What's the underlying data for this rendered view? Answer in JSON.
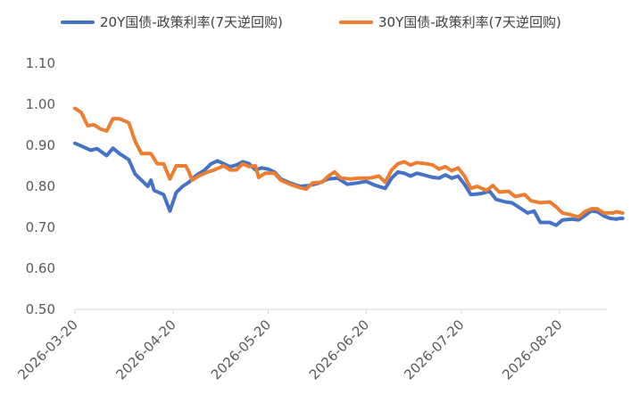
{
  "chart_data": {
    "type": "line",
    "title": "",
    "xlabel": "",
    "ylabel": "",
    "ylim": [
      0.5,
      1.1
    ],
    "y_ticks": [
      "0.50",
      "0.60",
      "0.70",
      "0.80",
      "0.90",
      "1.00",
      "1.10"
    ],
    "x_range": [
      "2026-03-20",
      "2026-08-35"
    ],
    "x_ticks": [
      "2026-03-20",
      "2026-04-20",
      "2026-05-20",
      "2026-06-20",
      "2026-07-20",
      "2026-08-20"
    ],
    "grid": false,
    "legend_position": "top",
    "series": [
      {
        "name": "20Y国债-政策利率(7天逆回购)",
        "color": "#4472C4",
        "points": [
          [
            "2026-03-20",
            0.905
          ],
          [
            "2026-03-23",
            0.895
          ],
          [
            "2026-03-25",
            0.888
          ],
          [
            "2026-03-27",
            0.892
          ],
          [
            "2026-03-30",
            0.875
          ],
          [
            "2026-04-01",
            0.893
          ],
          [
            "2026-04-03",
            0.88
          ],
          [
            "2026-04-06",
            0.865
          ],
          [
            "2026-04-08",
            0.83
          ],
          [
            "2026-04-10",
            0.815
          ],
          [
            "2026-04-12",
            0.8
          ],
          [
            "2026-04-13",
            0.815
          ],
          [
            "2026-04-14",
            0.79
          ],
          [
            "2026-04-17",
            0.78
          ],
          [
            "2026-04-19",
            0.74
          ],
          [
            "2026-04-21",
            0.785
          ],
          [
            "2026-04-23",
            0.8
          ],
          [
            "2026-04-25",
            0.81
          ],
          [
            "2026-04-27",
            0.825
          ],
          [
            "2026-04-30",
            0.84
          ],
          [
            "2026-05-02",
            0.855
          ],
          [
            "2026-05-04",
            0.862
          ],
          [
            "2026-05-06",
            0.855
          ],
          [
            "2026-05-08",
            0.848
          ],
          [
            "2026-05-10",
            0.852
          ],
          [
            "2026-05-12",
            0.86
          ],
          [
            "2026-05-14",
            0.855
          ],
          [
            "2026-05-16",
            0.84
          ],
          [
            "2026-05-18",
            0.845
          ],
          [
            "2026-05-20",
            0.842
          ],
          [
            "2026-05-22",
            0.835
          ],
          [
            "2026-05-24",
            0.818
          ],
          [
            "2026-05-27",
            0.808
          ],
          [
            "2026-05-30",
            0.8
          ],
          [
            "2026-06-02",
            0.802
          ],
          [
            "2026-06-05",
            0.808
          ],
          [
            "2026-06-08",
            0.818
          ],
          [
            "2026-06-11",
            0.82
          ],
          [
            "2026-06-14",
            0.805
          ],
          [
            "2026-06-17",
            0.808
          ],
          [
            "2026-06-20",
            0.812
          ],
          [
            "2026-06-23",
            0.802
          ],
          [
            "2026-06-26",
            0.795
          ],
          [
            "2026-06-28",
            0.82
          ],
          [
            "2026-06-30",
            0.835
          ],
          [
            "2026-07-02",
            0.832
          ],
          [
            "2026-07-04",
            0.825
          ],
          [
            "2026-07-06",
            0.832
          ],
          [
            "2026-07-08",
            0.828
          ],
          [
            "2026-07-11",
            0.822
          ],
          [
            "2026-07-13",
            0.82
          ],
          [
            "2026-07-15",
            0.828
          ],
          [
            "2026-07-17",
            0.82
          ],
          [
            "2026-07-19",
            0.825
          ],
          [
            "2026-07-21",
            0.805
          ],
          [
            "2026-07-23",
            0.78
          ],
          [
            "2026-07-26",
            0.782
          ],
          [
            "2026-07-29",
            0.788
          ],
          [
            "2026-07-31",
            0.768
          ],
          [
            "2026-08-03",
            0.762
          ],
          [
            "2026-08-05",
            0.76
          ],
          [
            "2026-08-07",
            0.75
          ],
          [
            "2026-08-10",
            0.735
          ],
          [
            "2026-08-12",
            0.74
          ],
          [
            "2026-08-14",
            0.712
          ],
          [
            "2026-08-17",
            0.712
          ],
          [
            "2026-08-19",
            0.705
          ],
          [
            "2026-08-21",
            0.718
          ],
          [
            "2026-08-24",
            0.72
          ],
          [
            "2026-08-26",
            0.718
          ],
          [
            "2026-08-28",
            0.728
          ],
          [
            "2026-08-30",
            0.74
          ],
          [
            "2026-09-01",
            0.738
          ],
          [
            "2026-09-03",
            0.728
          ],
          [
            "2026-09-05",
            0.722
          ],
          [
            "2026-09-07",
            0.72
          ],
          [
            "2026-09-08",
            0.722
          ],
          [
            "2026-09-09",
            0.722
          ]
        ]
      },
      {
        "name": "30Y国债-政策利率(7天逆回购)",
        "color": "#ED7D31",
        "points": [
          [
            "2026-03-20",
            0.99
          ],
          [
            "2026-03-22",
            0.98
          ],
          [
            "2026-03-24",
            0.948
          ],
          [
            "2026-03-26",
            0.95
          ],
          [
            "2026-03-28",
            0.94
          ],
          [
            "2026-03-30",
            0.935
          ],
          [
            "2026-04-01",
            0.965
          ],
          [
            "2026-04-03",
            0.965
          ],
          [
            "2026-04-06",
            0.955
          ],
          [
            "2026-04-08",
            0.91
          ],
          [
            "2026-04-10",
            0.88
          ],
          [
            "2026-04-13",
            0.88
          ],
          [
            "2026-04-15",
            0.855
          ],
          [
            "2026-04-17",
            0.855
          ],
          [
            "2026-04-19",
            0.818
          ],
          [
            "2026-04-21",
            0.85
          ],
          [
            "2026-04-24",
            0.85
          ],
          [
            "2026-04-25",
            0.835
          ],
          [
            "2026-04-26",
            0.815
          ],
          [
            "2026-04-28",
            0.825
          ],
          [
            "2026-05-01",
            0.835
          ],
          [
            "2026-05-03",
            0.84
          ],
          [
            "2026-05-06",
            0.85
          ],
          [
            "2026-05-08",
            0.84
          ],
          [
            "2026-05-10",
            0.84
          ],
          [
            "2026-05-12",
            0.855
          ],
          [
            "2026-05-14",
            0.848
          ],
          [
            "2026-05-16",
            0.85
          ],
          [
            "2026-05-17",
            0.822
          ],
          [
            "2026-05-19",
            0.832
          ],
          [
            "2026-05-22",
            0.832
          ],
          [
            "2026-05-24",
            0.815
          ],
          [
            "2026-05-27",
            0.805
          ],
          [
            "2026-05-30",
            0.797
          ],
          [
            "2026-06-01",
            0.793
          ],
          [
            "2026-06-03",
            0.808
          ],
          [
            "2026-06-06",
            0.81
          ],
          [
            "2026-06-08",
            0.825
          ],
          [
            "2026-06-10",
            0.835
          ],
          [
            "2026-06-12",
            0.82
          ],
          [
            "2026-06-15",
            0.818
          ],
          [
            "2026-06-18",
            0.82
          ],
          [
            "2026-06-21",
            0.82
          ],
          [
            "2026-06-24",
            0.825
          ],
          [
            "2026-06-26",
            0.81
          ],
          [
            "2026-06-28",
            0.84
          ],
          [
            "2026-06-30",
            0.855
          ],
          [
            "2026-07-02",
            0.86
          ],
          [
            "2026-07-04",
            0.852
          ],
          [
            "2026-07-06",
            0.858
          ],
          [
            "2026-07-09",
            0.855
          ],
          [
            "2026-07-11",
            0.852
          ],
          [
            "2026-07-13",
            0.842
          ],
          [
            "2026-07-15",
            0.848
          ],
          [
            "2026-07-17",
            0.838
          ],
          [
            "2026-07-19",
            0.845
          ],
          [
            "2026-07-21",
            0.825
          ],
          [
            "2026-07-23",
            0.795
          ],
          [
            "2026-07-25",
            0.8
          ],
          [
            "2026-07-28",
            0.79
          ],
          [
            "2026-07-30",
            0.802
          ],
          [
            "2026-08-01",
            0.786
          ],
          [
            "2026-08-04",
            0.788
          ],
          [
            "2026-08-06",
            0.775
          ],
          [
            "2026-08-09",
            0.78
          ],
          [
            "2026-08-11",
            0.765
          ],
          [
            "2026-08-14",
            0.76
          ],
          [
            "2026-08-17",
            0.762
          ],
          [
            "2026-08-19",
            0.75
          ],
          [
            "2026-08-21",
            0.735
          ],
          [
            "2026-08-23",
            0.732
          ],
          [
            "2026-08-26",
            0.725
          ],
          [
            "2026-08-28",
            0.738
          ],
          [
            "2026-08-30",
            0.745
          ],
          [
            "2026-09-01",
            0.745
          ],
          [
            "2026-09-03",
            0.735
          ],
          [
            "2026-09-06",
            0.735
          ],
          [
            "2026-09-07",
            0.738
          ],
          [
            "2026-09-09",
            0.735
          ]
        ]
      }
    ]
  }
}
